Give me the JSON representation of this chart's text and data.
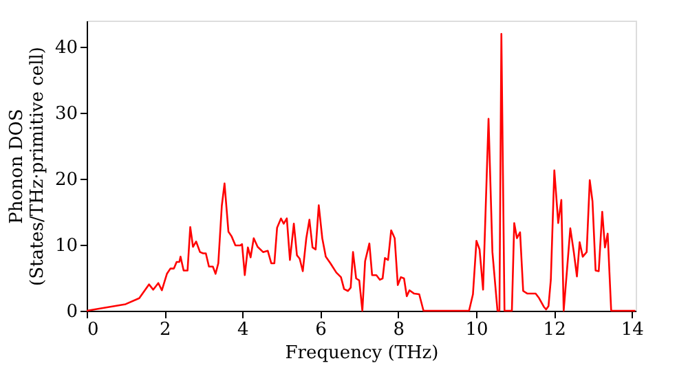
{
  "chart_data": {
    "type": "line",
    "xlabel": "Frequency (THz)",
    "ylabel": "Phonon DOS\n(States/THz·primitive cell)",
    "xlim": [
      0,
      14.1
    ],
    "ylim": [
      0,
      44
    ],
    "xticks": [
      0,
      2,
      4,
      6,
      8,
      10,
      12,
      14
    ],
    "yticks": [
      0,
      10,
      20,
      30,
      40
    ],
    "grid": false,
    "legend": false,
    "marker": "none",
    "line_style": "solid",
    "series": [
      {
        "color": "#ff0000",
        "x": [
          0,
          1.0,
          1.35,
          1.6,
          1.71,
          1.84,
          1.93,
          2.06,
          2.15,
          2.24,
          2.31,
          2.38,
          2.41,
          2.49,
          2.59,
          2.66,
          2.73,
          2.81,
          2.91,
          2.99,
          3.06,
          3.14,
          3.24,
          3.31,
          3.38,
          3.47,
          3.54,
          3.64,
          3.72,
          3.82,
          3.94,
          3.99,
          4.06,
          4.14,
          4.21,
          4.29,
          4.39,
          4.53,
          4.65,
          4.74,
          4.82,
          4.89,
          4.99,
          5.06,
          5.14,
          5.22,
          5.32,
          5.4,
          5.47,
          5.55,
          5.64,
          5.72,
          5.8,
          5.88,
          5.96,
          6.05,
          6.14,
          6.26,
          6.41,
          6.53,
          6.61,
          6.71,
          6.78,
          6.84,
          6.92,
          7.0,
          7.08,
          7.15,
          7.26,
          7.33,
          7.44,
          7.53,
          7.6,
          7.66,
          7.74,
          7.82,
          7.91,
          7.99,
          8.07,
          8.15,
          8.22,
          8.29,
          8.41,
          8.54,
          8.65,
          9.82,
          9.92,
          10.01,
          10.09,
          10.18,
          10.32,
          10.42,
          10.55,
          10.6,
          10.65,
          10.73,
          10.92,
          10.98,
          11.05,
          11.13,
          11.21,
          11.32,
          11.53,
          11.62,
          11.74,
          11.8,
          11.86,
          11.92,
          12.01,
          12.11,
          12.19,
          12.25,
          12.33,
          12.42,
          12.51,
          12.59,
          12.66,
          12.74,
          12.84,
          12.92,
          12.99,
          13.07,
          13.15,
          13.24,
          13.31,
          13.38,
          13.47,
          14.09
        ],
        "values": [
          0,
          1.0,
          1.9,
          4.0,
          3.2,
          4.2,
          3.1,
          5.6,
          6.4,
          6.4,
          7.4,
          7.4,
          8.2,
          6.1,
          6.1,
          12.7,
          9.7,
          10.5,
          8.9,
          8.7,
          8.7,
          6.7,
          6.7,
          5.6,
          7.2,
          15.9,
          19.3,
          12.0,
          11.3,
          9.9,
          9.9,
          10.1,
          5.4,
          9.6,
          8.1,
          11.0,
          9.7,
          8.9,
          9.1,
          7.2,
          7.2,
          12.6,
          14.0,
          13.2,
          14.0,
          7.7,
          13.2,
          8.4,
          7.9,
          6.0,
          11.0,
          13.8,
          9.6,
          9.3,
          16.0,
          11.0,
          8.2,
          7.2,
          5.8,
          5.1,
          3.3,
          3.0,
          3.5,
          8.9,
          4.9,
          4.6,
          0,
          7.5,
          10.2,
          5.4,
          5.4,
          4.7,
          4.9,
          8.0,
          7.7,
          12.2,
          11.0,
          3.9,
          5.1,
          4.9,
          2.2,
          3.1,
          2.6,
          2.5,
          0,
          0,
          2.5,
          10.6,
          9.3,
          3.2,
          29.1,
          8.9,
          0,
          0,
          42.0,
          0,
          0,
          13.3,
          11.0,
          11.9,
          3.0,
          2.6,
          2.6,
          1.9,
          0.6,
          0.2,
          0.7,
          4.7,
          21.3,
          13.3,
          16.8,
          0,
          5.8,
          12.5,
          8.9,
          5.2,
          10.4,
          8.2,
          8.9,
          19.8,
          16.6,
          6.1,
          6.0,
          15.0,
          9.6,
          11.7,
          0,
          0
        ]
      }
    ]
  }
}
